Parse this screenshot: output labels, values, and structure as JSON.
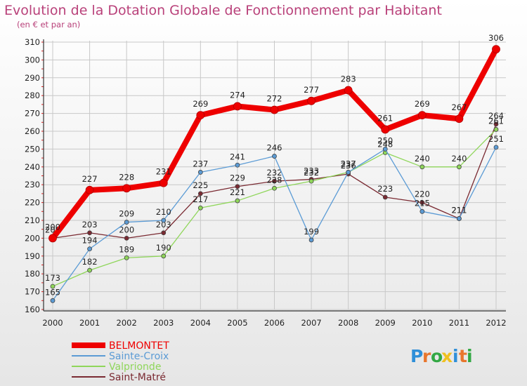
{
  "header": {
    "title": "Evolution de la Dotation Globale de Fonctionnement par Habitant",
    "subtitle": "(en € et par an)"
  },
  "brand": {
    "letters": [
      "P",
      "r",
      "o",
      "x",
      "i",
      "t",
      "i"
    ],
    "colors": [
      "#2f8fd8",
      "#e8762d",
      "#33a844",
      "#f0c020",
      "#2f8fd8",
      "#e8762d",
      "#33a844"
    ]
  },
  "chart_data": {
    "type": "line",
    "title": "Evolution de la Dotation Globale de Fonctionnement par Habitant",
    "subtitle": "(en € et par an)",
    "xlabel": "",
    "ylabel": "",
    "x": [
      2000,
      2001,
      2002,
      2003,
      2004,
      2005,
      2006,
      2007,
      2008,
      2009,
      2010,
      2011,
      2012
    ],
    "ylim": [
      160,
      310
    ],
    "yticks": [
      160,
      170,
      180,
      190,
      200,
      210,
      220,
      230,
      240,
      250,
      260,
      270,
      280,
      290,
      300,
      310
    ],
    "grid": true,
    "legend_position": "bottom-left",
    "series": [
      {
        "name": "Saint-Matré",
        "color": "#7a2a32",
        "width": 1.3,
        "marker": "dot",
        "values": [
          200,
          203,
          200,
          203,
          225,
          229,
          232,
          233,
          236,
          223,
          220,
          211,
          264
        ]
      },
      {
        "name": "Valprionde",
        "color": "#8fd65a",
        "width": 1.3,
        "marker": "dot",
        "values": [
          173,
          182,
          189,
          190,
          217,
          221,
          228,
          232,
          237,
          248,
          240,
          240,
          261
        ]
      },
      {
        "name": "Sainte-Croix",
        "color": "#5b9bd5",
        "width": 1.3,
        "marker": "dot",
        "values": [
          165,
          194,
          209,
          210,
          237,
          241,
          246,
          199,
          237,
          250,
          215,
          211,
          251
        ]
      },
      {
        "name": "BELMONTET",
        "color": "#ee0000",
        "width": 8,
        "marker": "dot",
        "values": [
          200,
          227,
          228,
          231,
          269,
          274,
          272,
          277,
          283,
          261,
          269,
          267,
          306
        ]
      }
    ]
  }
}
